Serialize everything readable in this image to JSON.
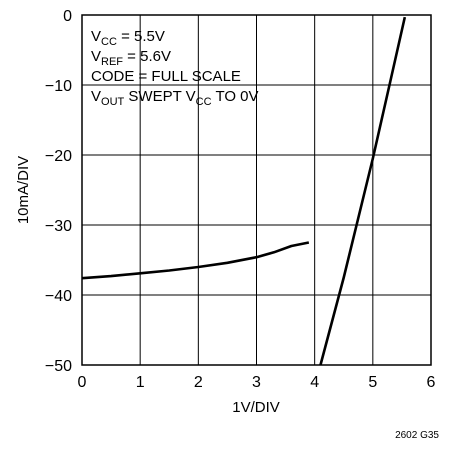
{
  "chart_data": {
    "type": "line",
    "xlabel": "1V/DIV",
    "ylabel": "10mA/DIV",
    "xlim": [
      0,
      6
    ],
    "ylim": [
      -50,
      0
    ],
    "x_ticks": [
      "0",
      "1",
      "2",
      "3",
      "4",
      "5",
      "6"
    ],
    "y_ticks": [
      "0",
      "−10",
      "−20",
      "−30",
      "−40",
      "−50"
    ],
    "grid": true,
    "annotation_lines": [
      {
        "parts": [
          {
            "text": "V",
            "sub": false
          },
          {
            "text": "CC",
            "sub": true
          },
          {
            "text": " = 5.5V",
            "sub": false
          }
        ]
      },
      {
        "parts": [
          {
            "text": "V",
            "sub": false
          },
          {
            "text": "REF",
            "sub": true
          },
          {
            "text": " = 5.6V",
            "sub": false
          }
        ]
      },
      {
        "parts": [
          {
            "text": "CODE = FULL SCALE",
            "sub": false
          }
        ]
      },
      {
        "parts": [
          {
            "text": "V",
            "sub": false
          },
          {
            "text": "OUT",
            "sub": true
          },
          {
            "text": " SWEPT V",
            "sub": false
          },
          {
            "text": "CC",
            "sub": true
          },
          {
            "text": " TO 0V",
            "sub": false
          }
        ]
      }
    ],
    "series": [
      {
        "x": [
          0,
          0.5,
          1,
          1.5,
          2,
          2.5,
          3,
          3.3,
          3.6,
          3.9
        ],
        "y": [
          -37.6,
          -37.3,
          -36.9,
          -36.5,
          -36.0,
          -35.4,
          -34.6,
          -33.9,
          -33.0,
          -32.5
        ]
      },
      {
        "x": [
          4.1,
          4.5,
          5.0,
          5.3,
          5.55
        ],
        "y": [
          -50,
          -37.5,
          -20.5,
          -9.5,
          -0.3
        ]
      }
    ]
  },
  "figure_id": "2602 G35"
}
